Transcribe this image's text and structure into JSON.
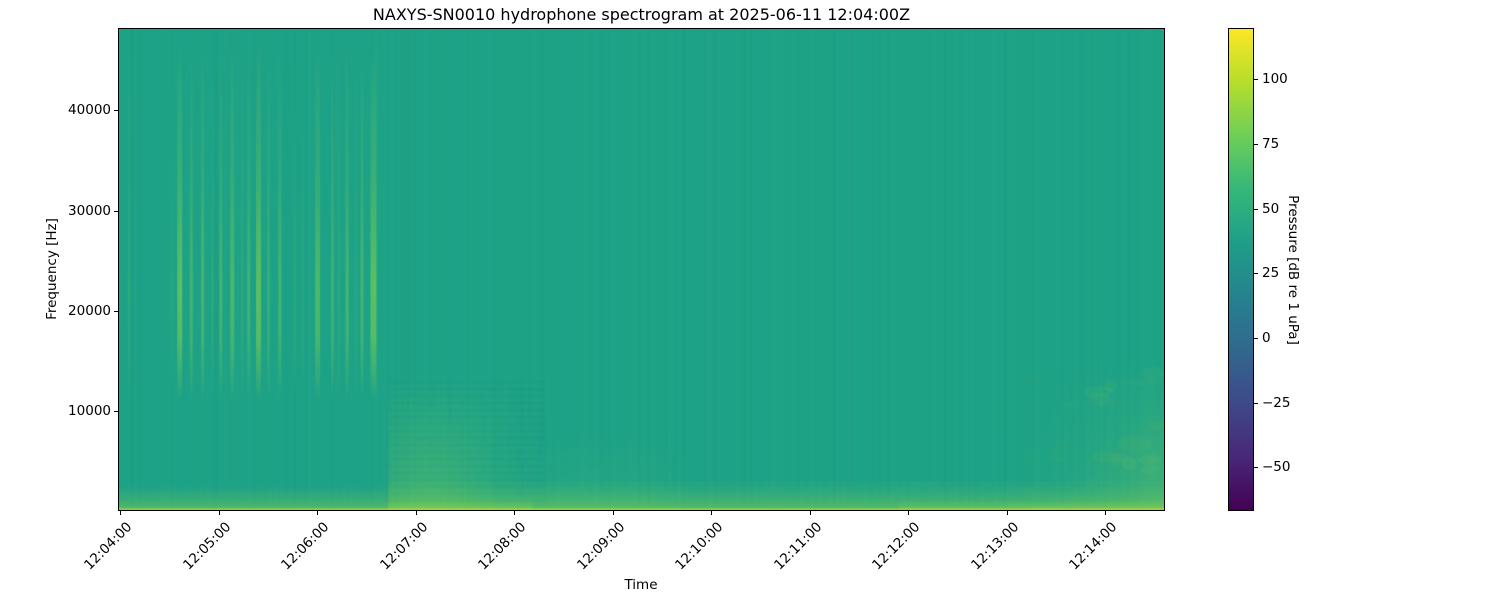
{
  "title": "NAXYS-SN0010 hydrophone spectrogram at 2025-06-11 12:04:00Z",
  "axes": {
    "xlabel": "Time",
    "ylabel": "Frequency [Hz]",
    "x_tick_labels": [
      "12:04:00",
      "12:05:00",
      "12:06:00",
      "12:07:00",
      "12:08:00",
      "12:09:00",
      "12:10:00",
      "12:11:00",
      "12:12:00",
      "12:13:00",
      "12:14:00"
    ],
    "y_ticks": [
      {
        "value": 10000,
        "label": "10000"
      },
      {
        "value": 20000,
        "label": "20000"
      },
      {
        "value": 30000,
        "label": "30000"
      },
      {
        "value": 40000,
        "label": "40000"
      }
    ]
  },
  "colorbar": {
    "label": "Pressure [dB re 1 uPa]",
    "ticks": [
      {
        "value": 100,
        "label": "100"
      },
      {
        "value": 75,
        "label": "75"
      },
      {
        "value": 50,
        "label": "50"
      },
      {
        "value": 25,
        "label": "25"
      },
      {
        "value": 0,
        "label": "0"
      },
      {
        "value": -25,
        "label": "−25"
      },
      {
        "value": -50,
        "label": "−50"
      }
    ],
    "vmin": -66.5,
    "vmax": 119.5,
    "colormap": "viridis",
    "gradient_stops_bottom_to_top": [
      "#440154",
      "#482878",
      "#3e4989",
      "#31688e",
      "#26828e",
      "#1f9e89",
      "#35b779",
      "#6ece58",
      "#b5de2b",
      "#fde725"
    ]
  },
  "chart_data": {
    "type": "heatmap",
    "subtype": "spectrogram",
    "title": "NAXYS-SN0010 hydrophone spectrogram at 2025-06-11 12:04:00Z",
    "xlabel": "Time",
    "ylabel": "Frequency [Hz]",
    "x_range_time": [
      "12:04:00",
      "12:14:36"
    ],
    "x_tick_labels": [
      "12:04:00",
      "12:05:00",
      "12:06:00",
      "12:07:00",
      "12:08:00",
      "12:09:00",
      "12:10:00",
      "12:11:00",
      "12:12:00",
      "12:13:00",
      "12:14:00"
    ],
    "y_range_hz": [
      150,
      48100
    ],
    "y_tick_values_hz": [
      10000,
      20000,
      30000,
      40000
    ],
    "value_label": "Pressure [dB re 1 uPa]",
    "value_range_db": [
      -66.5,
      119.5
    ],
    "colorbar_tick_values": [
      100,
      75,
      50,
      25,
      0,
      -25,
      -50
    ],
    "colormap": "viridis",
    "background_level_db": 50,
    "background_color": "#1da287",
    "pulse_color": "#86d34e",
    "features": {
      "pulse_train": {
        "description": "Repeated vertical broadband pulses, strongest 17-26 kHz, spanning ~11-46 kHz",
        "time_span_s": [
          5,
          158
        ],
        "freq_span_hz": [
          11000,
          46500
        ],
        "peak_band_hz": [
          17000,
          26000
        ],
        "peak_level_db": 72,
        "pulses_t_w_a": [
          [
            6,
            2,
            0.18
          ],
          [
            32,
            2,
            0.12
          ],
          [
            37,
            5,
            0.6
          ],
          [
            44,
            3,
            0.38
          ],
          [
            51,
            3,
            0.42
          ],
          [
            57,
            2,
            0.2
          ],
          [
            62,
            3,
            0.38
          ],
          [
            69,
            4,
            0.45
          ],
          [
            75,
            2,
            0.15
          ],
          [
            79,
            3,
            0.35
          ],
          [
            85,
            5,
            0.6
          ],
          [
            91,
            2,
            0.35
          ],
          [
            98,
            3,
            0.4
          ],
          [
            107,
            2,
            0.2
          ],
          [
            112,
            2,
            0.12
          ],
          [
            121,
            5,
            0.45
          ],
          [
            130,
            3,
            0.35
          ],
          [
            134,
            2,
            0.15
          ],
          [
            139,
            3,
            0.4
          ],
          [
            144,
            2,
            0.12
          ],
          [
            148,
            3,
            0.4
          ],
          [
            155,
            6,
            0.6
          ]
        ]
      },
      "broadband_low_event": {
        "description": "Diffuse banded low-frequency noise burst after pulses end",
        "time_span_s": [
          164,
          252
        ],
        "peak_s": 189,
        "freq_max_hz": 13500,
        "level_db": 62
      },
      "mid_faint_low_noise": {
        "description": "Very faint low-frequency remnant",
        "time_span_s": [
          262,
          320
        ],
        "freq_max_hz": 8000,
        "level_db": 55
      },
      "late_low_noise": {
        "description": "Mottled low-frequency noise rising toward end of record",
        "time_span_s": [
          536,
          636
        ],
        "freq_max_hz": 15000,
        "level_db": 63
      },
      "bottom_noise_band": {
        "description": "Persistent bright band at lowest frequencies across whole record",
        "freq_max_hz": 2600,
        "level_db": 78,
        "brighter_segments_s": [
          [
            164,
            252
          ],
          [
            475,
            542
          ],
          [
            542,
            636
          ]
        ]
      }
    }
  }
}
